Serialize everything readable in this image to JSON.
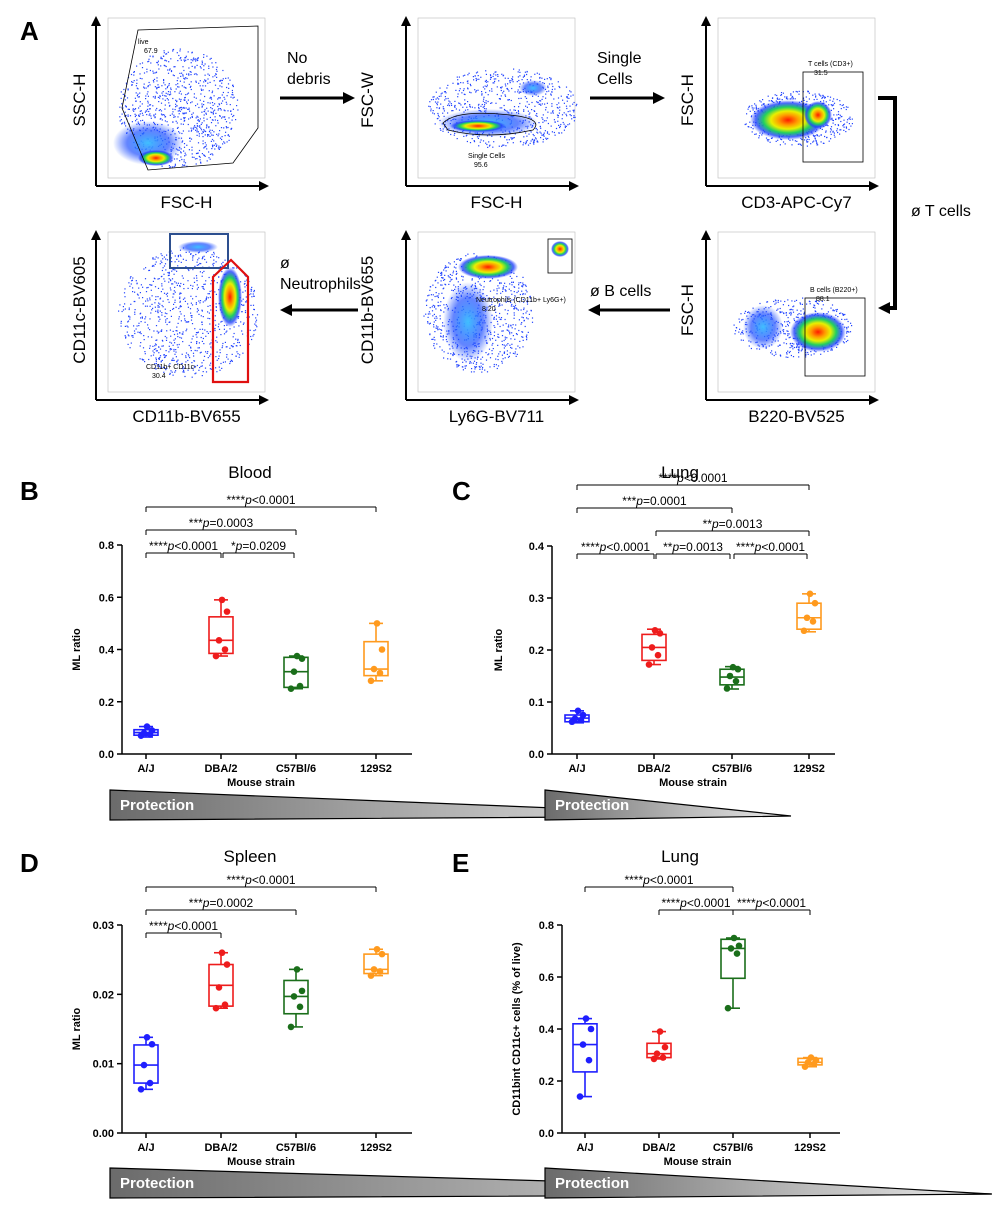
{
  "panel_letters": [
    "A",
    "B",
    "C",
    "D",
    "E"
  ],
  "flow": {
    "plots": [
      {
        "id": "p1",
        "xlabel": "FSC-H",
        "ylabel": "SSC-H",
        "gate": "live\n67.9"
      },
      {
        "id": "p2",
        "xlabel": "FSC-H",
        "ylabel": "FSC-W",
        "gate": "Single Cells\n95.6"
      },
      {
        "id": "p3",
        "xlabel": "CD3-APC-Cy7",
        "ylabel": "FSC-H",
        "gate": "T cells (CD3+)\n31.5"
      },
      {
        "id": "p4",
        "xlabel": "B220-BV525",
        "ylabel": "FSC-H",
        "gate": "B cells (B220+)\n88.1"
      },
      {
        "id": "p5",
        "xlabel": "Ly6G-BV711",
        "ylabel": "CD11b-BV655",
        "gate": "Neutrophils (CD11b+ Ly6G+)\n8.20"
      },
      {
        "id": "p6",
        "xlabel": "CD11b-BV655",
        "ylabel": "CD11c-BV605",
        "gate": "CD11b+ CD11c-\n30.4"
      }
    ],
    "arrows": {
      "no_debris": "No\ndebris",
      "single_cells": "Single\nCells",
      "t_cells": "ø T cells",
      "b_cells": "ø B cells",
      "neutrophils": "ø\nNeutrophils"
    }
  },
  "protection_label": "Protection",
  "colors": {
    "A/J": "#1f1fff",
    "DBA/2": "#ee1c1c",
    "C57Bl/6": "#1a6e1a",
    "129S2": "#ff9a1e"
  },
  "chart_data": [
    {
      "panel": "B",
      "type": "box",
      "title": "Blood",
      "xlabel": "Mouse strain",
      "ylabel": "ML ratio",
      "categories": [
        "A/J",
        "DBA/2",
        "C57Bl/6",
        "129S2"
      ],
      "ylim": [
        0,
        0.8
      ],
      "yticks": [
        0.0,
        0.2,
        0.4,
        0.6,
        0.8
      ],
      "ytick_labels": [
        "0.0",
        "0.2",
        "0.4",
        "0.6",
        "0.8"
      ],
      "boxes": [
        {
          "min": 0.065,
          "q1": 0.072,
          "median": 0.082,
          "q3": 0.093,
          "max": 0.105
        },
        {
          "min": 0.375,
          "q1": 0.385,
          "median": 0.435,
          "q3": 0.525,
          "max": 0.59
        },
        {
          "min": 0.25,
          "q1": 0.255,
          "median": 0.315,
          "q3": 0.37,
          "max": 0.375
        },
        {
          "min": 0.28,
          "q1": 0.3,
          "median": 0.325,
          "q3": 0.43,
          "max": 0.5
        }
      ],
      "points": [
        [
          0.07,
          0.075,
          0.08,
          0.09,
          0.105
        ],
        [
          0.375,
          0.4,
          0.435,
          0.545,
          0.59
        ],
        [
          0.25,
          0.26,
          0.315,
          0.365,
          0.375
        ],
        [
          0.28,
          0.31,
          0.325,
          0.4,
          0.5
        ]
      ],
      "significance": [
        {
          "from": 0,
          "to": 3,
          "level": 4,
          "stars": "****",
          "p": "p<0.0001"
        },
        {
          "from": 0,
          "to": 2,
          "level": 3,
          "stars": "***",
          "p": "p=0.0003"
        },
        {
          "from": 0,
          "to": 1,
          "level": 2,
          "stars": "****",
          "p": "p<0.0001"
        },
        {
          "from": 1,
          "to": 2,
          "level": 2,
          "stars": "*",
          "p": "p=0.0209"
        }
      ]
    },
    {
      "panel": "C",
      "type": "box",
      "title": "Lung",
      "xlabel": "Mouse strain",
      "ylabel": "ML ratio",
      "categories": [
        "A/J",
        "DBA/2",
        "C57Bl/6",
        "129S2"
      ],
      "ylim": [
        0,
        0.4
      ],
      "yticks": [
        0.0,
        0.1,
        0.2,
        0.3,
        0.4
      ],
      "ytick_labels": [
        "0.0",
        "0.1",
        "0.2",
        "0.3",
        "0.4"
      ],
      "boxes": [
        {
          "min": 0.06,
          "q1": 0.062,
          "median": 0.069,
          "q3": 0.075,
          "max": 0.083
        },
        {
          "min": 0.172,
          "q1": 0.18,
          "median": 0.205,
          "q3": 0.23,
          "max": 0.24
        },
        {
          "min": 0.125,
          "q1": 0.133,
          "median": 0.148,
          "q3": 0.163,
          "max": 0.168
        },
        {
          "min": 0.235,
          "q1": 0.24,
          "median": 0.262,
          "q3": 0.29,
          "max": 0.308
        }
      ],
      "points": [
        [
          0.062,
          0.065,
          0.068,
          0.075,
          0.083
        ],
        [
          0.172,
          0.19,
          0.205,
          0.232,
          0.238
        ],
        [
          0.126,
          0.14,
          0.15,
          0.163,
          0.167
        ],
        [
          0.237,
          0.255,
          0.262,
          0.29,
          0.308
        ]
      ],
      "significance": [
        {
          "from": 0,
          "to": 3,
          "level": 5,
          "stars": "****",
          "p": "p<0.0001"
        },
        {
          "from": 0,
          "to": 2,
          "level": 4,
          "stars": "***",
          "p": "p=0.0001"
        },
        {
          "from": 1,
          "to": 3,
          "level": 3,
          "stars": "**",
          "p": "p=0.0013"
        },
        {
          "from": 0,
          "to": 1,
          "level": 2,
          "stars": "****",
          "p": "p<0.0001"
        },
        {
          "from": 1,
          "to": 2,
          "level": 2,
          "stars": "**",
          "p": "p=0.0013"
        },
        {
          "from": 2,
          "to": 3,
          "level": 2,
          "stars": "****",
          "p": "p<0.0001"
        }
      ]
    },
    {
      "panel": "D",
      "type": "box",
      "title": "Spleen",
      "xlabel": "Mouse strain",
      "ylabel": "ML ratio",
      "categories": [
        "A/J",
        "DBA/2",
        "C57Bl/6",
        "129S2"
      ],
      "ylim": [
        0,
        0.03
      ],
      "yticks": [
        0.0,
        0.01,
        0.02,
        0.03
      ],
      "ytick_labels": [
        "0.00",
        "0.01",
        "0.02",
        "0.03"
      ],
      "boxes": [
        {
          "min": 0.0063,
          "q1": 0.0072,
          "median": 0.0098,
          "q3": 0.0127,
          "max": 0.0138
        },
        {
          "min": 0.018,
          "q1": 0.0183,
          "median": 0.0213,
          "q3": 0.0243,
          "max": 0.026
        },
        {
          "min": 0.0153,
          "q1": 0.0172,
          "median": 0.0197,
          "q3": 0.022,
          "max": 0.0236
        },
        {
          "min": 0.0227,
          "q1": 0.023,
          "median": 0.0236,
          "q3": 0.0258,
          "max": 0.0265
        }
      ],
      "points": [
        [
          0.0063,
          0.0072,
          0.0098,
          0.0128,
          0.0138
        ],
        [
          0.018,
          0.0185,
          0.021,
          0.0243,
          0.026
        ],
        [
          0.0153,
          0.0182,
          0.0197,
          0.0205,
          0.0236
        ],
        [
          0.0227,
          0.0233,
          0.0236,
          0.0258,
          0.0265
        ]
      ],
      "significance": [
        {
          "from": 0,
          "to": 3,
          "level": 4,
          "stars": "****",
          "p": "p<0.0001"
        },
        {
          "from": 0,
          "to": 2,
          "level": 3,
          "stars": "***",
          "p": "p=0.0002"
        },
        {
          "from": 0,
          "to": 1,
          "level": 2,
          "stars": "****",
          "p": "p<0.0001"
        }
      ]
    },
    {
      "panel": "E",
      "type": "box",
      "title": "Lung",
      "xlabel": "Mouse strain",
      "ylabel": "CD11bint CD11c+ cells (% of live)",
      "categories": [
        "A/J",
        "DBA/2",
        "C57Bl/6",
        "129S2"
      ],
      "ylim": [
        0,
        0.8
      ],
      "yticks": [
        0.0,
        0.2,
        0.4,
        0.6,
        0.8
      ],
      "ytick_labels": [
        "0.0",
        "0.2",
        "0.4",
        "0.6",
        "0.8"
      ],
      "boxes": [
        {
          "min": 0.14,
          "q1": 0.235,
          "median": 0.34,
          "q3": 0.42,
          "max": 0.44
        },
        {
          "min": 0.285,
          "q1": 0.29,
          "median": 0.305,
          "q3": 0.345,
          "max": 0.39
        },
        {
          "min": 0.48,
          "q1": 0.595,
          "median": 0.71,
          "q3": 0.745,
          "max": 0.75
        },
        {
          "min": 0.255,
          "q1": 0.262,
          "median": 0.272,
          "q3": 0.287,
          "max": 0.29
        }
      ],
      "points": [
        [
          0.14,
          0.28,
          0.34,
          0.4,
          0.44
        ],
        [
          0.285,
          0.29,
          0.305,
          0.33,
          0.39
        ],
        [
          0.48,
          0.69,
          0.71,
          0.72,
          0.75
        ],
        [
          0.255,
          0.265,
          0.272,
          0.28,
          0.29
        ]
      ],
      "significance": [
        {
          "from": 0,
          "to": 2,
          "level": 4,
          "stars": "****",
          "p": "p<0.0001"
        },
        {
          "from": 1,
          "to": 2,
          "level": 3,
          "stars": "****",
          "p": "p<0.0001"
        },
        {
          "from": 2,
          "to": 3,
          "level": 3,
          "stars": "****",
          "p": "p<0.0001"
        }
      ]
    }
  ]
}
